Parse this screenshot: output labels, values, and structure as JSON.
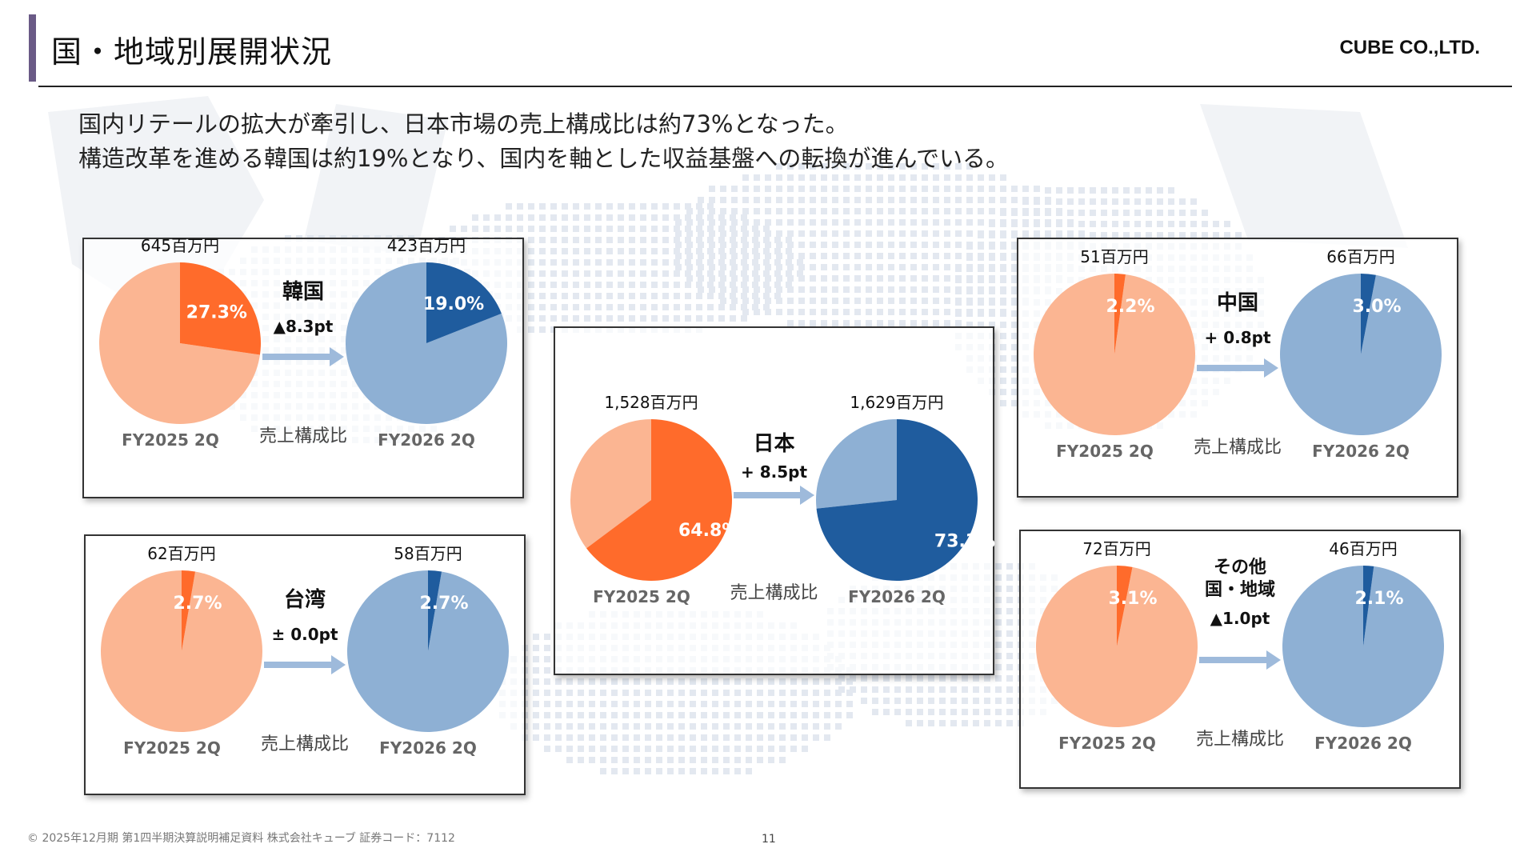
{
  "header": {
    "title": "国・地域別展開状況",
    "company": "CUBE CO.,LTD."
  },
  "summary": {
    "line1": "国内リテールの拡大が牽引し、日本市場の売上構成比は約73%となった。",
    "line2": "構造改革を進める韓国は約19%となり、国内を軸とした収益基盤への転換が進んでいる。"
  },
  "colors": {
    "fy2025_dark": "#ff6b2b",
    "fy2025_light": "#fbb592",
    "fy2026_dark": "#1f5c9e",
    "fy2026_light": "#8eb0d4",
    "arrow": "#9ebadb"
  },
  "chart_data": [
    {
      "type": "pie",
      "region": "韓国",
      "change_label": "▲8.3pt",
      "metric_label": "売上構成比",
      "pies": [
        {
          "period": "FY2025 2Q",
          "amount": "645百万円",
          "share": 27.3,
          "share_label": "27.3%"
        },
        {
          "period": "FY2026 2Q",
          "amount": "423百万円",
          "share": 19.0,
          "share_label": "19.0%"
        }
      ]
    },
    {
      "type": "pie",
      "region": "台湾",
      "change_label": "± 0.0pt",
      "metric_label": "売上構成比",
      "pies": [
        {
          "period": "FY2025 2Q",
          "amount": "62百万円",
          "share": 2.7,
          "share_label": "2.7%"
        },
        {
          "period": "FY2026 2Q",
          "amount": "58百万円",
          "share": 2.7,
          "share_label": "2.7%"
        }
      ]
    },
    {
      "type": "pie",
      "region": "日本",
      "change_label": "+ 8.5pt",
      "metric_label": "売上構成比",
      "pies": [
        {
          "period": "FY2025 2Q",
          "amount": "1,528百万円",
          "share": 64.8,
          "share_label": "64.8%"
        },
        {
          "period": "FY2026 2Q",
          "amount": "1,629百万円",
          "share": 73.3,
          "share_label": "73.3%"
        }
      ]
    },
    {
      "type": "pie",
      "region": "中国",
      "change_label": "+ 0.8pt",
      "metric_label": "売上構成比",
      "pies": [
        {
          "period": "FY2025 2Q",
          "amount": "51百万円",
          "share": 2.2,
          "share_label": "2.2%"
        },
        {
          "period": "FY2026 2Q",
          "amount": "66百万円",
          "share": 3.0,
          "share_label": "3.0%"
        }
      ]
    },
    {
      "type": "pie",
      "region": "その他\n国・地域",
      "change_label": "▲1.0pt",
      "metric_label": "売上構成比",
      "pies": [
        {
          "period": "FY2025 2Q",
          "amount": "72百万円",
          "share": 3.1,
          "share_label": "3.1%"
        },
        {
          "period": "FY2026 2Q",
          "amount": "46百万円",
          "share": 2.1,
          "share_label": "2.1%"
        }
      ]
    }
  ],
  "footer": {
    "copyright": "© 2025年12月期 第1四半期決算説明補足資料 株式会社キューブ 証券コード：7112",
    "page_number": "11"
  }
}
